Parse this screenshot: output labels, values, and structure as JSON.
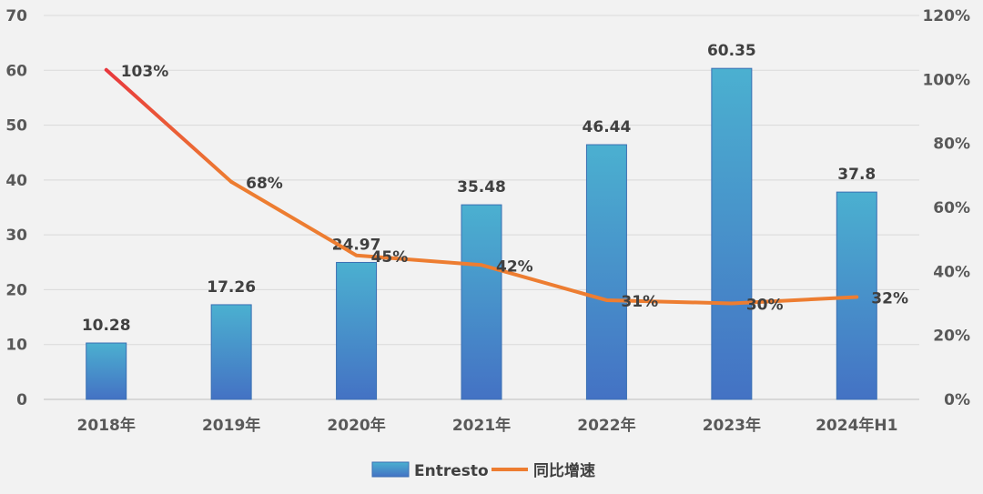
{
  "chart_data": {
    "type": "bar",
    "categories": [
      "2018年",
      "2019年",
      "2020年",
      "2021年",
      "2022年",
      "2023年",
      "2024年H1"
    ],
    "series": [
      {
        "name": "Entresto",
        "type": "bar",
        "axis": "left",
        "values": [
          10.28,
          17.26,
          24.97,
          35.48,
          46.44,
          60.35,
          37.8
        ],
        "labels": [
          "10.28",
          "17.26",
          "24.97",
          "35.48",
          "46.44",
          "60.35",
          "37.8"
        ],
        "color_top": "#4bb0d0",
        "color_bottom": "#4472c4"
      },
      {
        "name": "同比增速",
        "type": "line",
        "axis": "right",
        "values": [
          103,
          68,
          45,
          42,
          31,
          30,
          32
        ],
        "labels": [
          "103%",
          "68%",
          "45%",
          "42%",
          "31%",
          "30%",
          "32%"
        ],
        "color": "#ed7d31",
        "color_start": "#e8383d"
      }
    ],
    "left_axis": {
      "ylim": [
        0,
        70
      ],
      "ticks": [
        "0",
        "10",
        "20",
        "30",
        "40",
        "50",
        "60",
        "70"
      ]
    },
    "right_axis": {
      "ylim": [
        0,
        120
      ],
      "ticks": [
        "0%",
        "20%",
        "40%",
        "60%",
        "80%",
        "100%",
        "120%"
      ]
    },
    "grid": true,
    "legend_position": "bottom"
  }
}
